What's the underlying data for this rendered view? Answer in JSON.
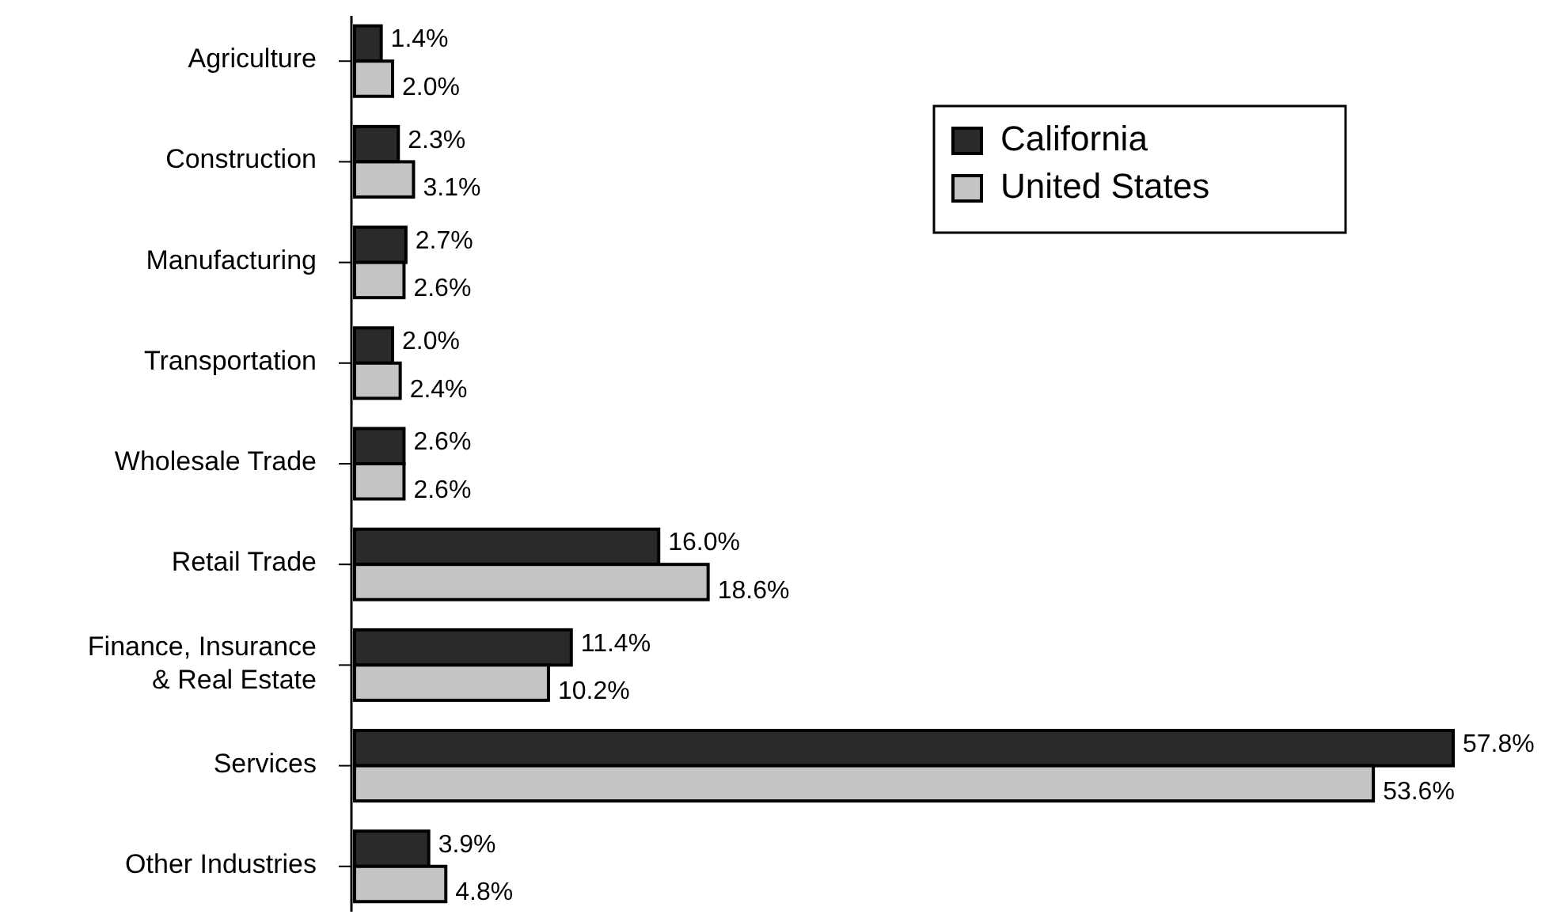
{
  "chart_data": {
    "type": "bar",
    "orientation": "horizontal",
    "categories": [
      "Agriculture",
      "Construction",
      "Manufacturing",
      "Transportation",
      "Wholesale Trade",
      "Retail Trade",
      "Finance, Insurance\n& Real Estate",
      "Services",
      "Other Industries"
    ],
    "series": [
      {
        "name": "California",
        "color": "#2a2a2a",
        "values": [
          1.4,
          2.3,
          2.7,
          2.0,
          2.6,
          16.0,
          11.4,
          57.8,
          3.9
        ],
        "value_labels": [
          "1.4%",
          "2.3%",
          "2.7%",
          "2.0%",
          "2.6%",
          "16.0%",
          "11.4%",
          "57.8%",
          "3.9%"
        ]
      },
      {
        "name": "United States",
        "color": "#c4c4c4",
        "values": [
          2.0,
          3.1,
          2.6,
          2.4,
          2.6,
          18.6,
          10.2,
          53.6,
          4.8
        ],
        "value_labels": [
          "2.0%",
          "3.1%",
          "2.6%",
          "2.4%",
          "2.6%",
          "18.6%",
          "10.2%",
          "53.6%",
          "4.8%"
        ]
      }
    ],
    "legend": "top right"
  }
}
